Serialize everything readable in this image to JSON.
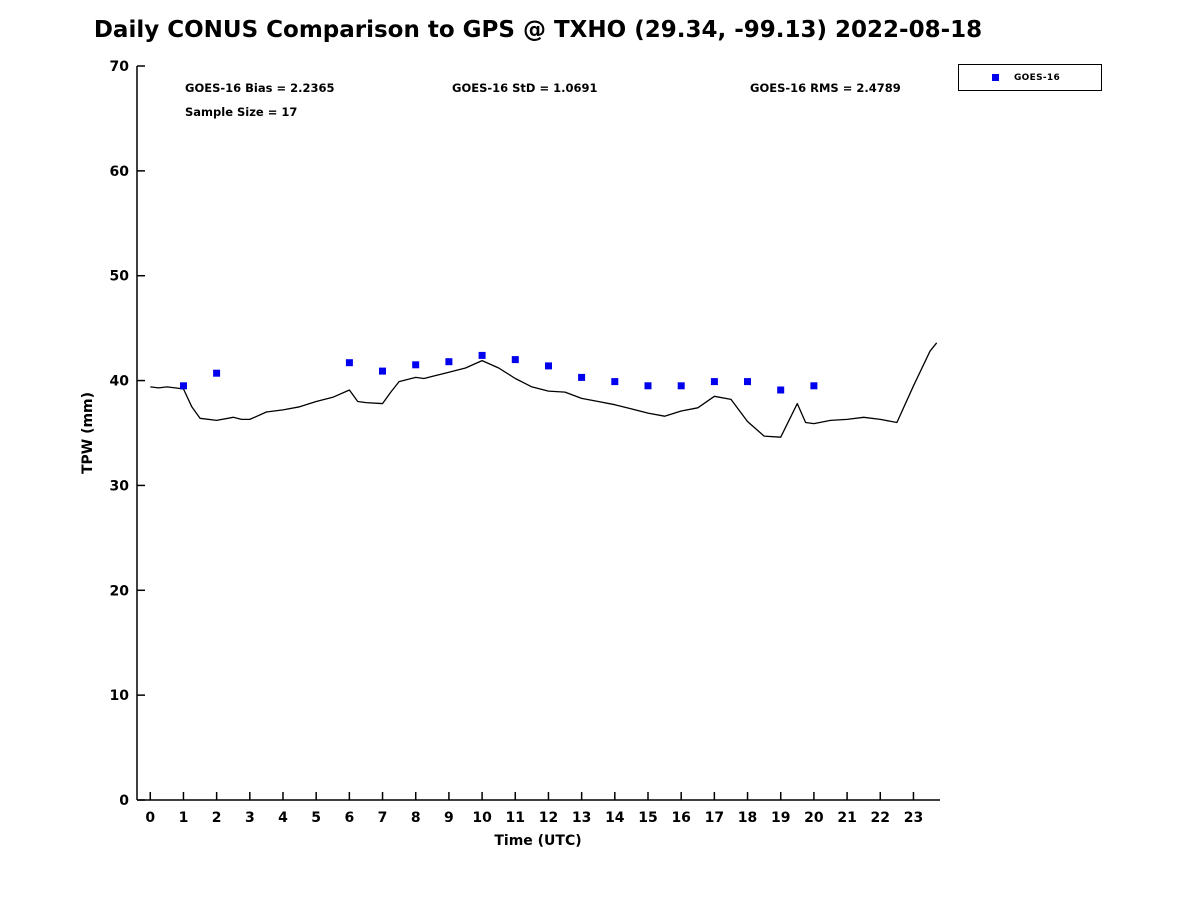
{
  "title": "Daily CONUS Comparison to GPS @ TXHO (29.34, -99.13) 2022-08-18",
  "stats": {
    "bias": "GOES-16 Bias = 2.2365",
    "std": "GOES-16 StD = 1.0691",
    "rms": "GOES-16 RMS = 2.4789",
    "sample": "Sample Size = 17"
  },
  "legend": {
    "label": "GOES-16",
    "marker_color": "#0000ee"
  },
  "axes": {
    "ylabel": "TPW (mm)",
    "xlabel": "Time (UTC)"
  },
  "chart_data": {
    "type": "line",
    "title": "Daily CONUS Comparison to GPS @ TXHO (29.34, -99.13) 2022-08-18",
    "xlabel": "Time (UTC)",
    "ylabel": "TPW (mm)",
    "xlim": [
      -0.4,
      23.8
    ],
    "ylim": [
      0,
      70
    ],
    "x_ticks": [
      0,
      1,
      2,
      3,
      4,
      5,
      6,
      7,
      8,
      9,
      10,
      11,
      12,
      13,
      14,
      15,
      16,
      17,
      18,
      19,
      20,
      21,
      22,
      23
    ],
    "y_ticks": [
      0,
      10,
      20,
      30,
      40,
      50,
      60,
      70
    ],
    "grid": false,
    "legend_position": "top-right-outside",
    "series": [
      {
        "name": "GPS",
        "type": "line",
        "color": "#000000",
        "x": [
          0,
          0.25,
          0.5,
          0.75,
          1.0,
          1.25,
          1.5,
          2.0,
          2.5,
          2.75,
          3.0,
          3.5,
          4.0,
          4.5,
          5.0,
          5.5,
          6.0,
          6.25,
          6.5,
          7.0,
          7.25,
          7.5,
          8.0,
          8.25,
          8.5,
          9.0,
          9.5,
          10.0,
          10.5,
          11.0,
          11.5,
          12.0,
          12.5,
          13.0,
          13.5,
          14.0,
          14.5,
          15.0,
          15.5,
          16.0,
          16.5,
          17.0,
          17.5,
          18.0,
          18.5,
          19.0,
          19.5,
          19.75,
          20.0,
          20.5,
          21.0,
          21.5,
          22.0,
          22.5,
          23.0,
          23.5,
          23.7
        ],
        "y": [
          39.4,
          39.3,
          39.4,
          39.3,
          39.2,
          37.5,
          36.4,
          36.2,
          36.5,
          36.3,
          36.3,
          37.0,
          37.2,
          37.5,
          38.0,
          38.4,
          39.1,
          38.0,
          37.9,
          37.8,
          38.9,
          39.9,
          40.3,
          40.2,
          40.4,
          40.8,
          41.2,
          41.9,
          41.2,
          40.2,
          39.4,
          39.0,
          38.9,
          38.3,
          38.0,
          37.7,
          37.3,
          36.9,
          36.6,
          37.1,
          37.4,
          38.5,
          38.2,
          36.1,
          34.7,
          34.6,
          37.8,
          36.0,
          35.9,
          36.2,
          36.3,
          36.5,
          36.3,
          36.0,
          39.5,
          42.8,
          43.6
        ]
      },
      {
        "name": "GOES-16",
        "type": "scatter",
        "marker": "square",
        "color": "#0000ee",
        "x": [
          1,
          2,
          6,
          7,
          8,
          9,
          10,
          11,
          12,
          13,
          14,
          15,
          16,
          17,
          18,
          19,
          20
        ],
        "y": [
          39.5,
          40.7,
          41.7,
          40.9,
          41.5,
          41.8,
          42.4,
          42.0,
          41.4,
          40.3,
          39.9,
          39.5,
          39.5,
          39.9,
          39.9,
          39.1,
          39.5
        ]
      }
    ]
  }
}
